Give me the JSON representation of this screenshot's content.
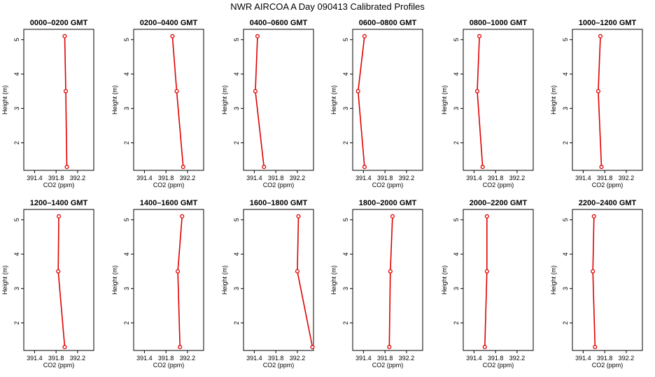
{
  "title": "NWR AIRCOA A  Day 090413  Calibrated Profiles",
  "colors": {
    "series": "#e00000",
    "frame": "#000000"
  },
  "chart_data": [
    {
      "type": "line",
      "title": "0000–0200 GMT",
      "xlabel": "CO2 (ppm)",
      "ylabel": "Height (m)",
      "xlim": [
        391.2,
        392.5
      ],
      "ylim": [
        1.2,
        5.3
      ],
      "xticks": [
        "391.4",
        "391.8",
        "392.2"
      ],
      "yticks": [
        "2",
        "3",
        "4",
        "5"
      ],
      "points": [
        {
          "x": 391.96,
          "y": 5.1
        },
        {
          "x": 391.98,
          "y": 3.5
        },
        {
          "x": 392.0,
          "y": 1.3
        }
      ]
    },
    {
      "type": "line",
      "title": "0200–0400 GMT",
      "xlabel": "CO2 (ppm)",
      "ylabel": "Height (m)",
      "xlim": [
        391.2,
        392.5
      ],
      "ylim": [
        1.2,
        5.3
      ],
      "xticks": [
        "391.4",
        "391.8",
        "392.2"
      ],
      "yticks": [
        "2",
        "3",
        "4",
        "5"
      ],
      "points": [
        {
          "x": 391.92,
          "y": 5.1
        },
        {
          "x": 392.0,
          "y": 3.5
        },
        {
          "x": 392.12,
          "y": 1.3
        }
      ]
    },
    {
      "type": "line",
      "title": "0400–0600 GMT",
      "xlabel": "CO2 (ppm)",
      "ylabel": "Height (m)",
      "xlim": [
        391.2,
        392.5
      ],
      "ylim": [
        1.2,
        5.3
      ],
      "xticks": [
        "391.4",
        "391.8",
        "392.2"
      ],
      "yticks": [
        "2",
        "3",
        "4",
        "5"
      ],
      "points": [
        {
          "x": 391.46,
          "y": 5.1
        },
        {
          "x": 391.42,
          "y": 3.5
        },
        {
          "x": 391.58,
          "y": 1.3
        }
      ]
    },
    {
      "type": "line",
      "title": "0600–0800 GMT",
      "xlabel": "CO2 (ppm)",
      "ylabel": "Height (m)",
      "xlim": [
        391.2,
        392.5
      ],
      "ylim": [
        1.2,
        5.3
      ],
      "xticks": [
        "391.4",
        "391.8",
        "392.2"
      ],
      "yticks": [
        "2",
        "3",
        "4",
        "5"
      ],
      "points": [
        {
          "x": 391.42,
          "y": 5.1
        },
        {
          "x": 391.3,
          "y": 3.5
        },
        {
          "x": 391.42,
          "y": 1.3
        }
      ]
    },
    {
      "type": "line",
      "title": "0800–1000 GMT",
      "xlabel": "CO2 (ppm)",
      "ylabel": "Height (m)",
      "xlim": [
        391.2,
        392.5
      ],
      "ylim": [
        1.2,
        5.3
      ],
      "xticks": [
        "391.4",
        "391.8",
        "392.2"
      ],
      "yticks": [
        "2",
        "3",
        "4",
        "5"
      ],
      "points": [
        {
          "x": 391.5,
          "y": 5.1
        },
        {
          "x": 391.46,
          "y": 3.5
        },
        {
          "x": 391.56,
          "y": 1.3
        }
      ]
    },
    {
      "type": "line",
      "title": "1000–1200 GMT",
      "xlabel": "CO2 (ppm)",
      "ylabel": "Height (m)",
      "xlim": [
        391.2,
        392.5
      ],
      "ylim": [
        1.2,
        5.3
      ],
      "xticks": [
        "391.4",
        "391.8",
        "392.2"
      ],
      "yticks": [
        "2",
        "3",
        "4",
        "5"
      ],
      "points": [
        {
          "x": 391.72,
          "y": 5.1
        },
        {
          "x": 391.68,
          "y": 3.5
        },
        {
          "x": 391.74,
          "y": 1.3
        }
      ]
    },
    {
      "type": "line",
      "title": "1200–1400 GMT",
      "xlabel": "CO2 (ppm)",
      "ylabel": "Height (m)",
      "xlim": [
        391.2,
        392.5
      ],
      "ylim": [
        1.2,
        5.3
      ],
      "xticks": [
        "391.4",
        "391.8",
        "392.2"
      ],
      "yticks": [
        "2",
        "3",
        "4",
        "5"
      ],
      "points": [
        {
          "x": 391.85,
          "y": 5.1
        },
        {
          "x": 391.84,
          "y": 3.5
        },
        {
          "x": 391.96,
          "y": 1.3
        }
      ]
    },
    {
      "type": "line",
      "title": "1400–1600 GMT",
      "xlabel": "CO2 (ppm)",
      "ylabel": "Height (m)",
      "xlim": [
        391.2,
        392.5
      ],
      "ylim": [
        1.2,
        5.3
      ],
      "xticks": [
        "391.4",
        "391.8",
        "392.2"
      ],
      "yticks": [
        "2",
        "3",
        "4",
        "5"
      ],
      "points": [
        {
          "x": 392.1,
          "y": 5.1
        },
        {
          "x": 392.02,
          "y": 3.5
        },
        {
          "x": 392.06,
          "y": 1.3
        }
      ]
    },
    {
      "type": "line",
      "title": "1600–1800 GMT",
      "xlabel": "CO2 (ppm)",
      "ylabel": "Height (m)",
      "xlim": [
        391.2,
        392.5
      ],
      "ylim": [
        1.2,
        5.3
      ],
      "xticks": [
        "391.4",
        "391.8",
        "392.2"
      ],
      "yticks": [
        "2",
        "3",
        "4",
        "5"
      ],
      "points": [
        {
          "x": 392.22,
          "y": 5.1
        },
        {
          "x": 392.2,
          "y": 3.5
        },
        {
          "x": 392.48,
          "y": 1.3
        }
      ]
    },
    {
      "type": "line",
      "title": "1800–2000 GMT",
      "xlabel": "CO2 (ppm)",
      "ylabel": "Height (m)",
      "xlim": [
        391.2,
        392.5
      ],
      "ylim": [
        1.2,
        5.3
      ],
      "xticks": [
        "391.4",
        "391.8",
        "392.2"
      ],
      "yticks": [
        "2",
        "3",
        "4",
        "5"
      ],
      "points": [
        {
          "x": 391.94,
          "y": 5.1
        },
        {
          "x": 391.9,
          "y": 3.5
        },
        {
          "x": 391.88,
          "y": 1.3
        }
      ]
    },
    {
      "type": "line",
      "title": "2000–2200 GMT",
      "xlabel": "CO2 (ppm)",
      "ylabel": "Height (m)",
      "xlim": [
        391.2,
        392.5
      ],
      "ylim": [
        1.2,
        5.3
      ],
      "xticks": [
        "391.4",
        "391.8",
        "392.2"
      ],
      "yticks": [
        "2",
        "3",
        "4",
        "5"
      ],
      "points": [
        {
          "x": 391.64,
          "y": 5.1
        },
        {
          "x": 391.64,
          "y": 3.5
        },
        {
          "x": 391.6,
          "y": 1.3
        }
      ]
    },
    {
      "type": "line",
      "title": "2200–2400 GMT",
      "xlabel": "CO2 (ppm)",
      "ylabel": "Height (m)",
      "xlim": [
        391.2,
        392.5
      ],
      "ylim": [
        1.2,
        5.3
      ],
      "xticks": [
        "391.4",
        "391.8",
        "392.2"
      ],
      "yticks": [
        "2",
        "3",
        "4",
        "5"
      ],
      "points": [
        {
          "x": 391.6,
          "y": 5.1
        },
        {
          "x": 391.58,
          "y": 3.5
        },
        {
          "x": 391.62,
          "y": 1.3
        }
      ]
    }
  ]
}
